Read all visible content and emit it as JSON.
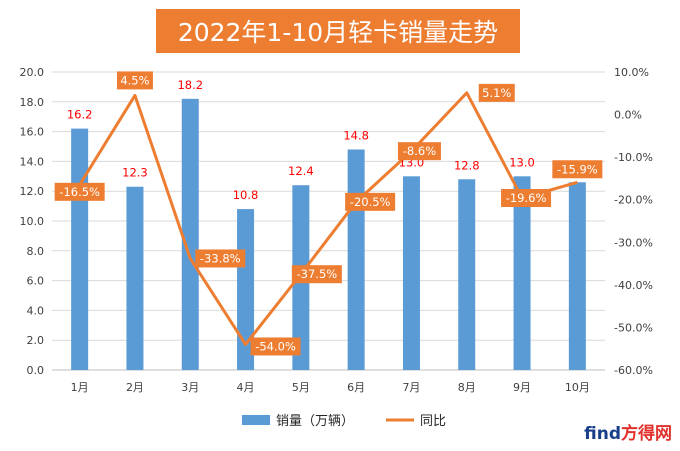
{
  "colors": {
    "bar": "#5B9BD5",
    "line": "#ED7D31",
    "title_bg": "#ED7D31",
    "bar_label": "#FF0000",
    "line_label_bg": "#ED7D31",
    "line_label_text": "#FFFFFF",
    "axis_text": "#404040",
    "grid": "#D9D9D9"
  },
  "watermark": {
    "part1": "find",
    "part2": "方得网"
  },
  "chart_data": {
    "type": "bar+line",
    "title": "2022年1-10月轻卡销量走势",
    "categories": [
      "1月",
      "2月",
      "3月",
      "4月",
      "5月",
      "6月",
      "7月",
      "8月",
      "9月",
      "10月"
    ],
    "series": [
      {
        "name": "销量（万辆）",
        "type": "bar",
        "axis": "left",
        "values": [
          16.2,
          12.3,
          18.2,
          10.8,
          12.4,
          14.8,
          13.0,
          12.8,
          13.0,
          12.6
        ],
        "labels": [
          "16.2",
          "12.3",
          "18.2",
          "10.8",
          "12.4",
          "14.8",
          "13.0",
          "12.8",
          "13.0",
          "12.6"
        ]
      },
      {
        "name": "同比",
        "type": "line",
        "axis": "right",
        "values": [
          -16.5,
          4.5,
          -33.8,
          -54.0,
          -37.5,
          -20.5,
          -8.6,
          5.1,
          -19.6,
          -15.9
        ],
        "labels": [
          "-16.5%",
          "4.5%",
          "-33.8%",
          "-54.0%",
          "-37.5%",
          "-20.5%",
          "-8.6%",
          "5.1%",
          "-19.6%",
          "-15.9%"
        ]
      }
    ],
    "y_left": {
      "min": 0,
      "max": 20,
      "ticks": [
        "0.0",
        "2.0",
        "4.0",
        "6.0",
        "8.0",
        "10.0",
        "12.0",
        "14.0",
        "16.0",
        "18.0",
        "20.0"
      ]
    },
    "y_right": {
      "min": -60,
      "max": 10,
      "ticks": [
        "-60.0%",
        "-50.0%",
        "-40.0%",
        "-30.0%",
        "-20.0%",
        "-10.0%",
        "0.0%",
        "10.0%"
      ]
    },
    "grid": true,
    "legend": "bottom"
  }
}
